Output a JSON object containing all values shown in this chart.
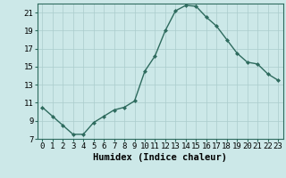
{
  "x": [
    0,
    1,
    2,
    3,
    4,
    5,
    6,
    7,
    8,
    9,
    10,
    11,
    12,
    13,
    14,
    15,
    16,
    17,
    18,
    19,
    20,
    21,
    22,
    23
  ],
  "y": [
    10.5,
    9.5,
    8.5,
    7.5,
    7.5,
    8.8,
    9.5,
    10.2,
    10.5,
    11.2,
    14.5,
    16.2,
    19.0,
    21.2,
    21.8,
    21.7,
    20.5,
    19.5,
    18.0,
    16.5,
    15.5,
    15.3,
    14.2,
    13.5
  ],
  "xlabel": "Humidex (Indice chaleur)",
  "xlim": [
    -0.5,
    23.5
  ],
  "ylim": [
    7,
    22
  ],
  "yticks": [
    7,
    9,
    11,
    13,
    15,
    17,
    19,
    21
  ],
  "xticks": [
    0,
    1,
    2,
    3,
    4,
    5,
    6,
    7,
    8,
    9,
    10,
    11,
    12,
    13,
    14,
    15,
    16,
    17,
    18,
    19,
    20,
    21,
    22,
    23
  ],
  "line_color": "#2e6b5e",
  "marker": "D",
  "marker_size": 2.0,
  "line_width": 1.0,
  "bg_color": "#cce8e8",
  "grid_color": "#aacccc",
  "grid_color_minor": "#bbdddd",
  "xlabel_fontsize": 7.5,
  "tick_fontsize": 6.5
}
